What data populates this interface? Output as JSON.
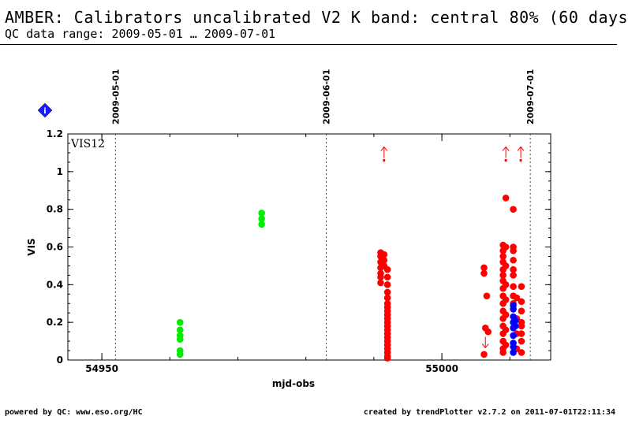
{
  "header": {
    "title": "AMBER: Calibrators uncalibrated V2 K band: central 80% (60 days",
    "subtitle": "QC data range: 2009-05-01 … 2009-07-01"
  },
  "footer": {
    "left": "powered by QC: www.eso.org/HC",
    "right": "created by trendPlotter v2.7.2 on 2011-07-01T22:11:34"
  },
  "info_badge": {
    "icon": "info-diamond-icon",
    "text": "i",
    "color": "#1a1aff"
  },
  "chart_data": {
    "type": "scatter",
    "title": "",
    "xlabel": "mjd-obs",
    "ylabel": "VIS",
    "panel_label": "VIS12",
    "xlim": [
      54945,
      55016
    ],
    "ylim": [
      0,
      1.2
    ],
    "x_ticks": [
      54950,
      55000
    ],
    "y_ticks": [
      0,
      0.2,
      0.4,
      0.6,
      0.8,
      1,
      1.2
    ],
    "x_tick_labels": [
      "54950",
      "55000"
    ],
    "y_tick_labels": [
      "0",
      "0.2",
      "0.4",
      "0.6",
      "0.8",
      "1",
      "1.2"
    ],
    "grid": false,
    "date_markers": [
      {
        "label": "2009-05-01",
        "x": 54952
      },
      {
        "label": "2009-06-01",
        "x": 54983
      },
      {
        "label": "2009-07-01",
        "x": 55013
      }
    ],
    "series": [
      {
        "color": "#00ee00",
        "points": [
          [
            54961.5,
            0.2
          ],
          [
            54961.5,
            0.16
          ],
          [
            54961.5,
            0.13
          ],
          [
            54961.5,
            0.11
          ],
          [
            54961.5,
            0.05
          ],
          [
            54961.5,
            0.03
          ],
          [
            54973.5,
            0.78
          ],
          [
            54973.5,
            0.75
          ],
          [
            54973.5,
            0.72
          ]
        ]
      },
      {
        "color": "#ff0000",
        "points": [
          [
            54991.0,
            0.57
          ],
          [
            54991.0,
            0.55
          ],
          [
            54991.0,
            0.52
          ],
          [
            54991.0,
            0.49
          ],
          [
            54991.0,
            0.46
          ],
          [
            54991.0,
            0.44
          ],
          [
            54991.0,
            0.41
          ],
          [
            54991.5,
            0.56
          ],
          [
            54991.5,
            0.53
          ],
          [
            54991.5,
            0.5
          ],
          [
            54992.0,
            0.48
          ],
          [
            54992.0,
            0.44
          ],
          [
            54992.0,
            0.4
          ],
          [
            54992.0,
            0.36
          ],
          [
            54992.0,
            0.33
          ],
          [
            54992.0,
            0.3
          ],
          [
            54992.0,
            0.28
          ],
          [
            54992.0,
            0.26
          ],
          [
            54992.0,
            0.24
          ],
          [
            54992.0,
            0.22
          ],
          [
            54992.0,
            0.2
          ],
          [
            54992.0,
            0.18
          ],
          [
            54992.0,
            0.16
          ],
          [
            54992.0,
            0.14
          ],
          [
            54992.0,
            0.12
          ],
          [
            54992.0,
            0.1
          ],
          [
            54992.0,
            0.08
          ],
          [
            54992.0,
            0.06
          ],
          [
            54992.0,
            0.04
          ],
          [
            54992.0,
            0.02
          ],
          [
            54992.0,
            0.01
          ],
          [
            55006.2,
            0.49
          ],
          [
            55006.2,
            0.46
          ],
          [
            55006.6,
            0.34
          ],
          [
            55006.4,
            0.17
          ],
          [
            55006.8,
            0.15
          ],
          [
            55006.2,
            0.03
          ],
          [
            55009.0,
            0.61
          ],
          [
            55009.0,
            0.58
          ],
          [
            55009.0,
            0.55
          ],
          [
            55009.0,
            0.52
          ],
          [
            55009.0,
            0.48
          ],
          [
            55009.0,
            0.45
          ],
          [
            55009.0,
            0.42
          ],
          [
            55009.0,
            0.38
          ],
          [
            55009.0,
            0.34
          ],
          [
            55009.0,
            0.3
          ],
          [
            55009.0,
            0.26
          ],
          [
            55009.0,
            0.22
          ],
          [
            55009.0,
            0.18
          ],
          [
            55009.0,
            0.14
          ],
          [
            55009.0,
            0.1
          ],
          [
            55009.0,
            0.06
          ],
          [
            55009.0,
            0.04
          ],
          [
            55009.4,
            0.86
          ],
          [
            55009.4,
            0.6
          ],
          [
            55009.4,
            0.5
          ],
          [
            55009.4,
            0.4
          ],
          [
            55009.4,
            0.32
          ],
          [
            55009.4,
            0.24
          ],
          [
            55009.4,
            0.16
          ],
          [
            55009.4,
            0.08
          ],
          [
            55010.5,
            0.8
          ],
          [
            55010.5,
            0.6
          ],
          [
            55010.5,
            0.58
          ],
          [
            55010.5,
            0.53
          ],
          [
            55010.5,
            0.48
          ],
          [
            55010.5,
            0.45
          ],
          [
            55010.5,
            0.39
          ],
          [
            55010.5,
            0.34
          ],
          [
            55010.5,
            0.3
          ],
          [
            55011.0,
            0.33
          ],
          [
            55011.0,
            0.22
          ],
          [
            55011.0,
            0.14
          ],
          [
            55011.0,
            0.06
          ],
          [
            55011.7,
            0.39
          ],
          [
            55011.7,
            0.31
          ],
          [
            55011.7,
            0.26
          ],
          [
            55011.7,
            0.2
          ],
          [
            55011.7,
            0.18
          ],
          [
            55011.7,
            0.14
          ],
          [
            55011.7,
            0.1
          ],
          [
            55011.7,
            0.04
          ]
        ]
      },
      {
        "color": "#0000ff",
        "points": [
          [
            55010.5,
            0.29
          ],
          [
            55010.5,
            0.27
          ],
          [
            55010.5,
            0.23
          ],
          [
            55010.5,
            0.2
          ],
          [
            55010.5,
            0.17
          ],
          [
            55010.5,
            0.13
          ],
          [
            55010.5,
            0.09
          ],
          [
            55010.5,
            0.07
          ],
          [
            55010.5,
            0.04
          ],
          [
            55010.8,
            0.21
          ],
          [
            55010.8,
            0.18
          ]
        ]
      }
    ],
    "arrows": [
      {
        "x": 54991.5,
        "y": 1.06,
        "direction": "up",
        "color": "#ff0000"
      },
      {
        "x": 55006.4,
        "y": 0.09,
        "direction": "down",
        "color": "#ff0000"
      },
      {
        "x": 55009.4,
        "y": 1.06,
        "direction": "up",
        "color": "#ff0000"
      },
      {
        "x": 55011.6,
        "y": 1.06,
        "direction": "up",
        "color": "#ff0000"
      }
    ]
  }
}
